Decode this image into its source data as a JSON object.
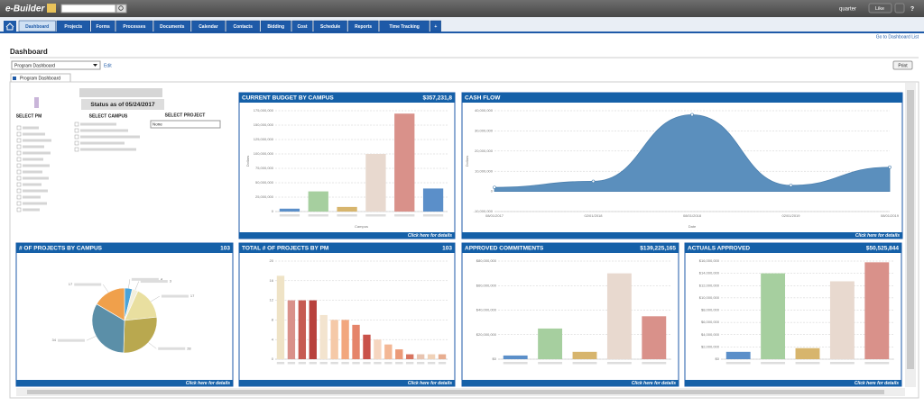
{
  "header": {
    "logo": "e-Builder",
    "user": "quarter",
    "like": "Like",
    "help": "?"
  },
  "tabs": [
    "Dashboard",
    "Projects",
    "Forms",
    "Processes",
    "Documents",
    "Calendar",
    "Contacts",
    "Bidding",
    "Cost",
    "Schedule",
    "Reports",
    "Time Tracking",
    "+"
  ],
  "page": {
    "link": "Go to Dashboard List",
    "title": "Dashboard",
    "selector": "Program Dashboard",
    "edit": "Edit",
    "print": "Print",
    "tab": "Program Dashboard"
  },
  "filters": {
    "status": "Status as of 05/24/2017",
    "pm": "SELECT PM",
    "campus": "SELECT CAMPUS",
    "project": "SELECT PROJECT",
    "project_value": "None"
  },
  "chart_data": [
    {
      "type": "bar",
      "title": "CURRENT BUDGET BY CAMPUS",
      "total": "$357,231,8",
      "footer": "Click here for details",
      "xlabel": "Campus",
      "ylabel": "Dollars",
      "categories": [
        null,
        null,
        null,
        null,
        null,
        null
      ],
      "values": [
        5000000,
        35000000,
        8000000,
        100000000,
        170000000,
        40000000
      ],
      "colors": [
        "#5b8fc9",
        "#a6cf9f",
        "#d7b56d",
        "#e8d9cf",
        "#d9918a",
        "#5b8fc9"
      ],
      "ylim": [
        0,
        175000000
      ],
      "yticks": [
        0,
        {
          "value": 25000000,
          "label": "25,000,000"
        },
        {
          "value": 50000000,
          "label": "50,000,000"
        },
        {
          "value": 75000000,
          "label": "75,000,000"
        },
        {
          "value": 100000000,
          "label": "100,000,000"
        },
        {
          "value": 125000000,
          "label": "125,000,000"
        },
        {
          "value": 150000000,
          "label": "150,000,000"
        },
        {
          "value": 175000000,
          "label": "175,000,000"
        }
      ],
      "grid": true
    },
    {
      "type": "area",
      "title": "CASH FLOW",
      "footer": "Click here for details",
      "xlabel": "Date",
      "ylabel": "Dollars",
      "categories": [
        "08/01/2017",
        "02/01/2018",
        "08/01/2018",
        "02/01/2019",
        "08/01/2019"
      ],
      "values": [
        2000000,
        5000000,
        38000000,
        3000000,
        12000000
      ],
      "color": "#5b8fbd",
      "ylim": [
        -10000000,
        40000000
      ],
      "yticks": [
        {
          "value": -10000000,
          "label": "-10,000,000"
        },
        0,
        {
          "value": 10000000,
          "label": "10,000,000"
        },
        {
          "value": 20000000,
          "label": "20,000,000"
        },
        {
          "value": 30000000,
          "label": "30,000,000"
        },
        {
          "value": 40000000,
          "label": "40,000,000"
        }
      ],
      "grid": true
    },
    {
      "type": "pie",
      "title": "# OF PROJECTS BY CAMPUS",
      "total": 103,
      "footer": "Click here for details",
      "values": [
        4,
        3,
        17,
        28,
        34,
        17
      ],
      "colors": [
        "#4aa3d8",
        "#f3efdc",
        "#e9dfa0",
        "#b9a84f",
        "#5b8fa8",
        "#f0a04b"
      ]
    },
    {
      "type": "bar",
      "title": "TOTAL # OF PROJECTS BY PM",
      "total": 103,
      "footer": "Click here for details",
      "categories": [
        null,
        null,
        null,
        null,
        null,
        null,
        null,
        null,
        null,
        null,
        null,
        null,
        null,
        null,
        null,
        null
      ],
      "values": [
        17,
        12,
        12,
        12,
        9,
        8,
        8,
        7,
        5,
        4,
        3,
        2,
        1,
        1,
        1,
        1
      ],
      "colors": [
        "#efe3c6",
        "#d9918a",
        "#c65b52",
        "#b8413c",
        "#f3e4cf",
        "#f5c9a8",
        "#f2a77e",
        "#e5846a",
        "#c9524a",
        "#f6d6c0",
        "#f3b795",
        "#eb9a78",
        "#d8745f",
        "#e8c4b0",
        "#f0d2b8",
        "#e7ad90"
      ],
      "ylim": [
        0,
        20
      ],
      "yticks": [
        0,
        4,
        8,
        12,
        16,
        20
      ],
      "grid": true
    },
    {
      "type": "bar",
      "title": "APPROVED COMMITMENTS",
      "total": "$139,225,165",
      "footer": "Click here for details",
      "categories": [
        null,
        null,
        null,
        null,
        null
      ],
      "values": [
        3000000,
        25000000,
        6000000,
        70000000,
        35000000
      ],
      "colors": [
        "#5b8fc9",
        "#a6cf9f",
        "#d7b56d",
        "#e8d9cf",
        "#d9918a"
      ],
      "ylim": [
        0,
        80000000
      ],
      "yticks": [
        {
          "value": 0,
          "label": "$0"
        },
        {
          "value": 20000000,
          "label": "$20,000,000"
        },
        {
          "value": 40000000,
          "label": "$40,000,000"
        },
        {
          "value": 60000000,
          "label": "$60,000,000"
        },
        {
          "value": 80000000,
          "label": "$80,000,000"
        }
      ],
      "grid": true
    },
    {
      "type": "bar",
      "title": "ACTUALS APPROVED",
      "total": "$50,525,844",
      "footer": "Click here for details",
      "categories": [
        null,
        null,
        null,
        null,
        null
      ],
      "values": [
        1200000,
        14000000,
        1800000,
        12700000,
        15800000
      ],
      "colors": [
        "#5b8fc9",
        "#a6cf9f",
        "#d7b56d",
        "#e8d9cf",
        "#d9918a"
      ],
      "ylim": [
        0,
        16000000
      ],
      "yticks": [
        {
          "value": 0,
          "label": "$0"
        },
        {
          "value": 2000000,
          "label": "$2,000,000"
        },
        {
          "value": 4000000,
          "label": "$4,000,000"
        },
        {
          "value": 6000000,
          "label": "$6,000,000"
        },
        {
          "value": 8000000,
          "label": "$8,000,000"
        },
        {
          "value": 10000000,
          "label": "$10,000,000"
        },
        {
          "value": 12000000,
          "label": "$12,000,000"
        },
        {
          "value": 14000000,
          "label": "$14,000,000"
        },
        {
          "value": 16000000,
          "label": "$16,000,000"
        }
      ],
      "grid": true
    }
  ]
}
